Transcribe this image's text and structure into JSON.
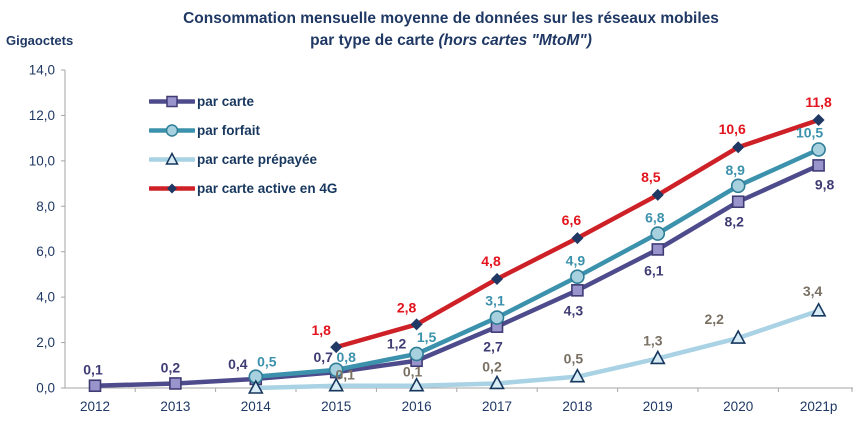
{
  "title": {
    "line1": "Consommation mensuelle moyenne de données sur les réseaux mobiles",
    "line2_regular": "par type de carte ",
    "line2_italic": "(hors cartes \"MtoM\")"
  },
  "colors": {
    "title_text": "#1F3864",
    "axis_line": "#A6A6A6",
    "axis_text": "#1F3864"
  },
  "chart_data": {
    "type": "line",
    "title": "Consommation mensuelle moyenne de données sur les réseaux mobiles par type de carte (hors cartes \"MtoM\")",
    "ylabel": "Gigaoctets",
    "xlabel": "",
    "ylim": [
      0,
      14
    ],
    "y_tick_labels": [
      "0,0",
      "2,0",
      "4,0",
      "6,0",
      "8,0",
      "10,0",
      "12,0",
      "14,0"
    ],
    "grid": false,
    "legend_position": "top-left",
    "categories": [
      "2012",
      "2013",
      "2014",
      "2015",
      "2016",
      "2017",
      "2018",
      "2019",
      "2020",
      "2021p"
    ],
    "series": [
      {
        "name": "par carte",
        "marker": "square",
        "color": "#4D4B8C",
        "marker_fill": "#9A94CC",
        "marker_stroke": "#3F3C74",
        "label_color": "#3F3C74",
        "values": [
          0.1,
          0.2,
          0.4,
          0.7,
          1.2,
          2.7,
          4.3,
          6.1,
          8.2,
          9.8
        ],
        "labels": [
          "0,1",
          "0,2",
          "0,4",
          "0,7",
          "1,2",
          "2,7",
          "4,3",
          "6,1",
          "8,2",
          "9,8"
        ]
      },
      {
        "name": "par forfait",
        "marker": "circle",
        "color": "#3C92AC",
        "marker_fill": "#A7D1DE",
        "marker_stroke": "#2E7E97",
        "label_color": "#3C92AC",
        "values": [
          null,
          null,
          0.5,
          0.8,
          1.5,
          3.1,
          4.9,
          6.8,
          8.9,
          10.5
        ],
        "labels": [
          "",
          "",
          "0,5",
          "0,8",
          "1,5",
          "3,1",
          "4,9",
          "6,8",
          "8,9",
          "10,5"
        ]
      },
      {
        "name": "par carte prépayée",
        "marker": "triangle",
        "color": "#A9D2E4",
        "marker_fill": "#D8ECF5",
        "marker_stroke": "#17375E",
        "label_color": "#7A7164",
        "values": [
          null,
          null,
          0.0,
          0.1,
          0.1,
          0.2,
          0.5,
          1.3,
          2.2,
          3.4
        ],
        "labels": [
          "",
          "",
          "",
          "0,1",
          "0,1",
          "0,2",
          "0,5",
          "1,3",
          "2,2",
          "3,4"
        ]
      },
      {
        "name": "par carte active en 4G",
        "marker": "diamond",
        "color": "#CE2127",
        "marker_fill": "#1F3864",
        "marker_stroke": "#1F3864",
        "label_color": "#E2141E",
        "values": [
          null,
          null,
          null,
          1.8,
          2.8,
          4.8,
          6.6,
          8.5,
          10.6,
          11.8
        ],
        "labels": [
          "",
          "",
          "",
          "1,8",
          "2,8",
          "4,8",
          "6,6",
          "8,5",
          "10,6",
          "11,8"
        ]
      }
    ]
  }
}
